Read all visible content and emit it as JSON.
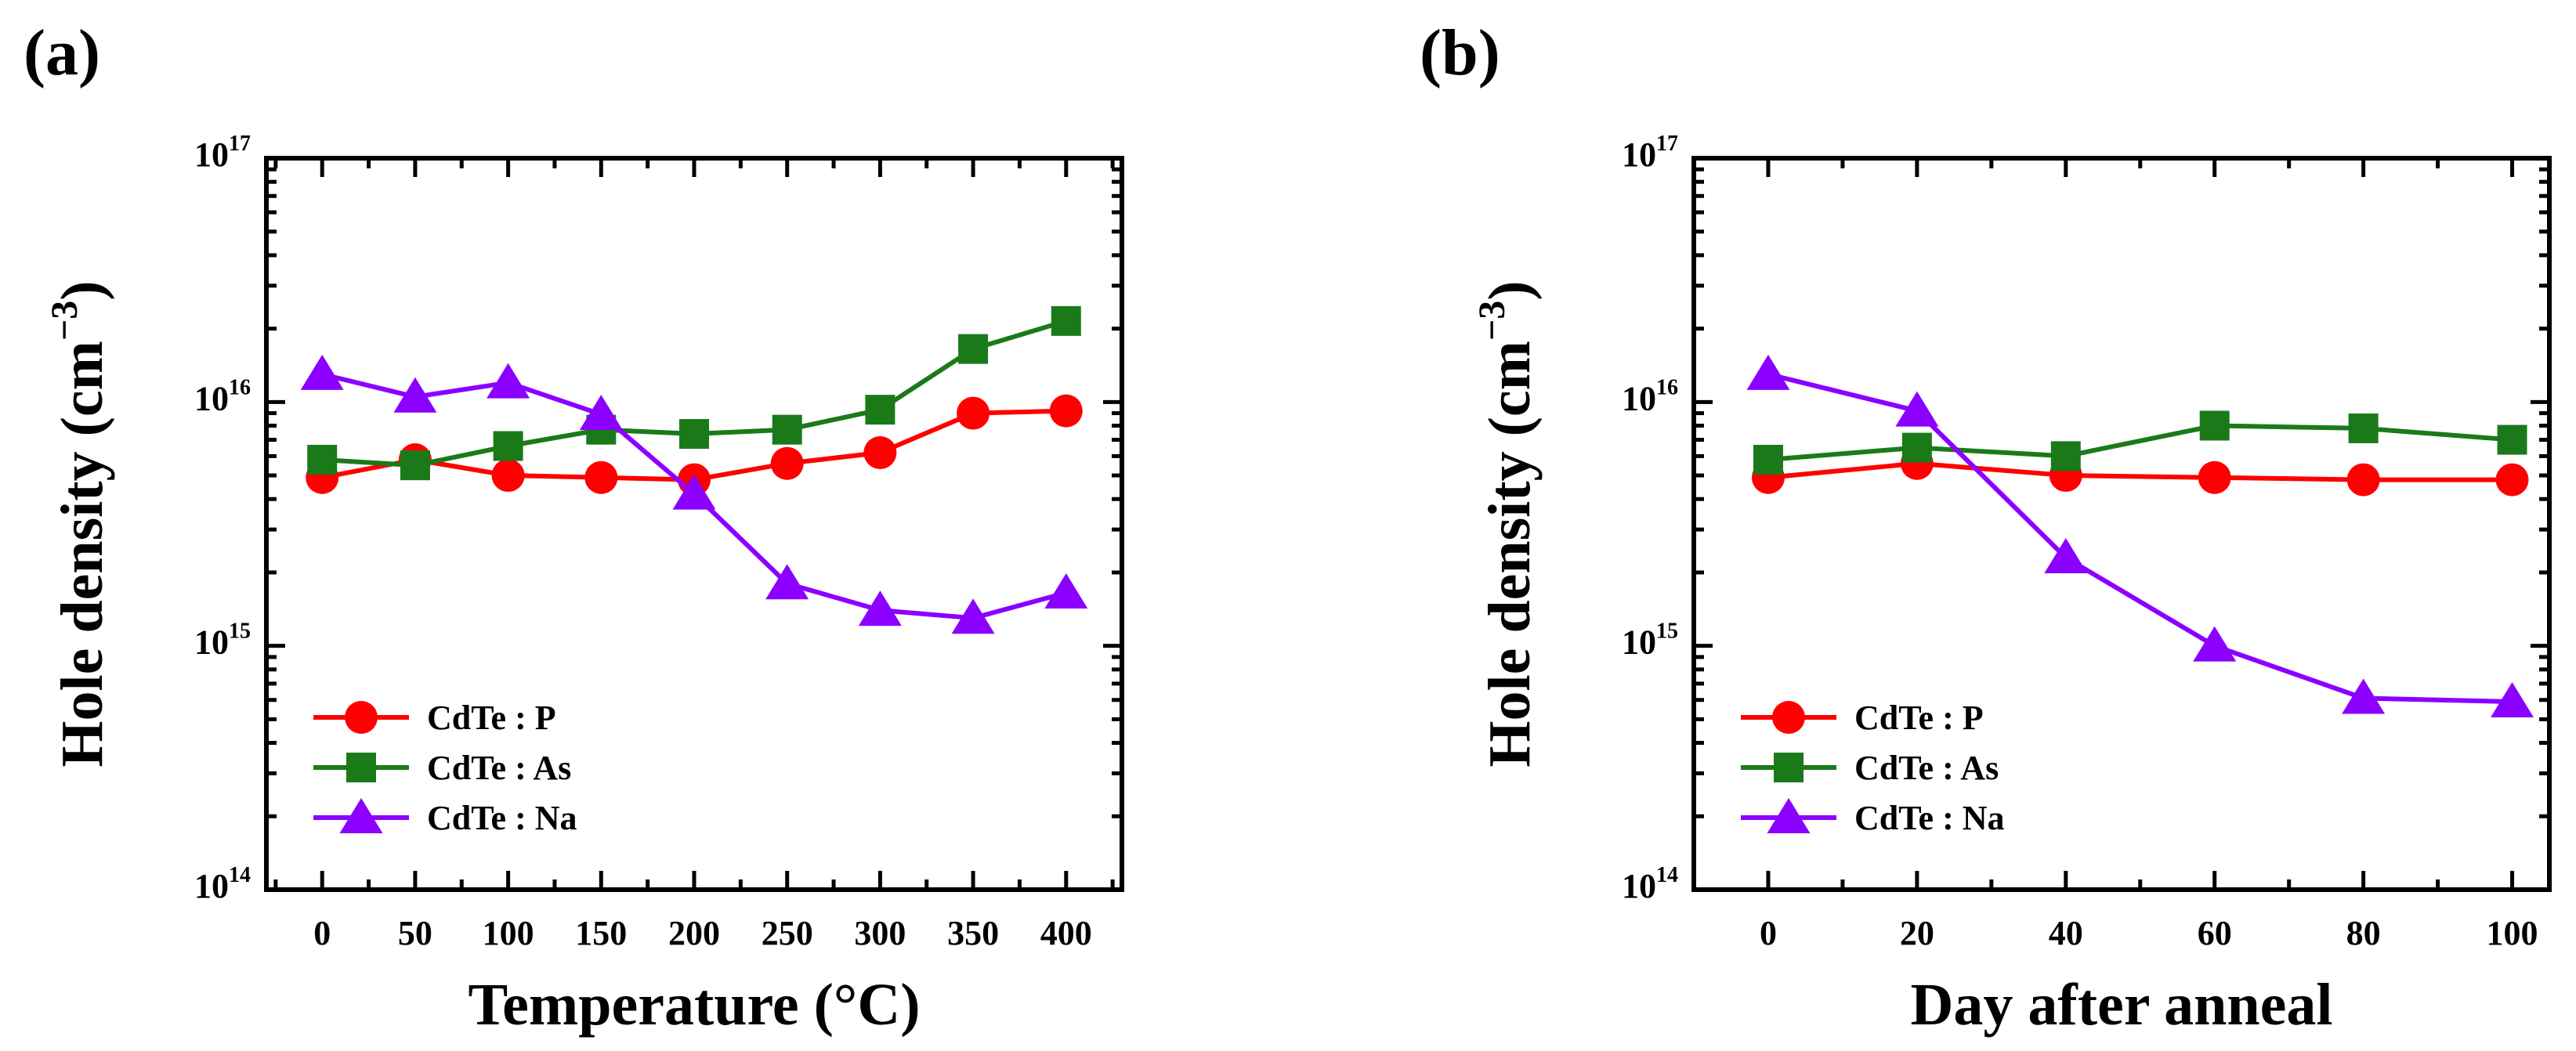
{
  "chart_data": [
    {
      "panel_label": "(a)",
      "type": "line",
      "xlabel": "Temperature (°C)",
      "ylabel": "Hole density",
      "ylabel_unit": "cm",
      "ylabel_unit_exp": "−3",
      "yscale": "log",
      "ylim": [
        100000000000000.0,
        1e+17
      ],
      "xlim": [
        -30,
        430
      ],
      "x": [
        0,
        50,
        100,
        150,
        200,
        250,
        300,
        350,
        400
      ],
      "x_ticks": [
        0,
        50,
        100,
        150,
        200,
        250,
        300,
        350,
        400
      ],
      "x_tick_labels": [
        "0",
        "50",
        "100",
        "150",
        "200",
        "250",
        "300",
        "350",
        "400"
      ],
      "y_ticks": [
        100000000000000.0,
        1000000000000000.0,
        1e+16,
        1e+17
      ],
      "y_tick_labels": [
        {
          "base": "10",
          "exp": "14"
        },
        {
          "base": "10",
          "exp": "15"
        },
        {
          "base": "10",
          "exp": "16"
        },
        {
          "base": "10",
          "exp": "17"
        }
      ],
      "legend_position": "lower-left",
      "series": [
        {
          "name": "CdTe : P",
          "color": "#ff0000",
          "marker": "circle",
          "values": [
            4900000000000000.0,
            5800000000000000.0,
            5000000000000000.0,
            4900000000000000.0,
            4800000000000000.0,
            5600000000000000.0,
            6200000000000000.0,
            9000000000000000.0,
            9200000000000000.0
          ]
        },
        {
          "name": "CdTe : As",
          "color": "#1a7a1a",
          "marker": "square",
          "values": [
            5800000000000000.0,
            5500000000000000.0,
            6600000000000000.0,
            7700000000000000.0,
            7400000000000000.0,
            7700000000000000.0,
            9300000000000000.0,
            1.65e+16,
            2.15e+16
          ]
        },
        {
          "name": "CdTe : Na",
          "color": "#8b00ff",
          "marker": "triangle",
          "values": [
            1.3e+16,
            1.05e+16,
            1.2e+16,
            8900000000000000.0,
            4200000000000000.0,
            1800000000000000.0,
            1400000000000000.0,
            1300000000000000.0,
            1650000000000000.0
          ]
        }
      ]
    },
    {
      "panel_label": "(b)",
      "type": "line",
      "xlabel": "Day after anneal",
      "ylabel": "Hole density",
      "ylabel_unit": "cm",
      "ylabel_unit_exp": "−3",
      "yscale": "log",
      "ylim": [
        100000000000000.0,
        1e+17
      ],
      "xlim": [
        -10,
        105
      ],
      "x": [
        0,
        20,
        40,
        60,
        80,
        100
      ],
      "x_ticks": [
        0,
        20,
        40,
        60,
        80,
        100
      ],
      "x_tick_labels": [
        "0",
        "20",
        "40",
        "60",
        "80",
        "100"
      ],
      "y_ticks": [
        100000000000000.0,
        1000000000000000.0,
        1e+16,
        1e+17
      ],
      "y_tick_labels": [
        {
          "base": "10",
          "exp": "14"
        },
        {
          "base": "10",
          "exp": "15"
        },
        {
          "base": "10",
          "exp": "16"
        },
        {
          "base": "10",
          "exp": "17"
        }
      ],
      "legend_position": "lower-left",
      "series": [
        {
          "name": "CdTe : P",
          "color": "#ff0000",
          "marker": "circle",
          "values": [
            4900000000000000.0,
            5600000000000000.0,
            5000000000000000.0,
            4900000000000000.0,
            4800000000000000.0,
            4800000000000000.0
          ]
        },
        {
          "name": "CdTe : As",
          "color": "#1a7a1a",
          "marker": "square",
          "values": [
            5800000000000000.0,
            6500000000000000.0,
            6000000000000000.0,
            8000000000000000.0,
            7800000000000000.0,
            7000000000000000.0
          ]
        },
        {
          "name": "CdTe : Na",
          "color": "#8b00ff",
          "marker": "triangle",
          "values": [
            1.3e+16,
            9200000000000000.0,
            2300000000000000.0,
            1000000000000000.0,
            610000000000000.0,
            590000000000000.0
          ]
        }
      ]
    }
  ]
}
